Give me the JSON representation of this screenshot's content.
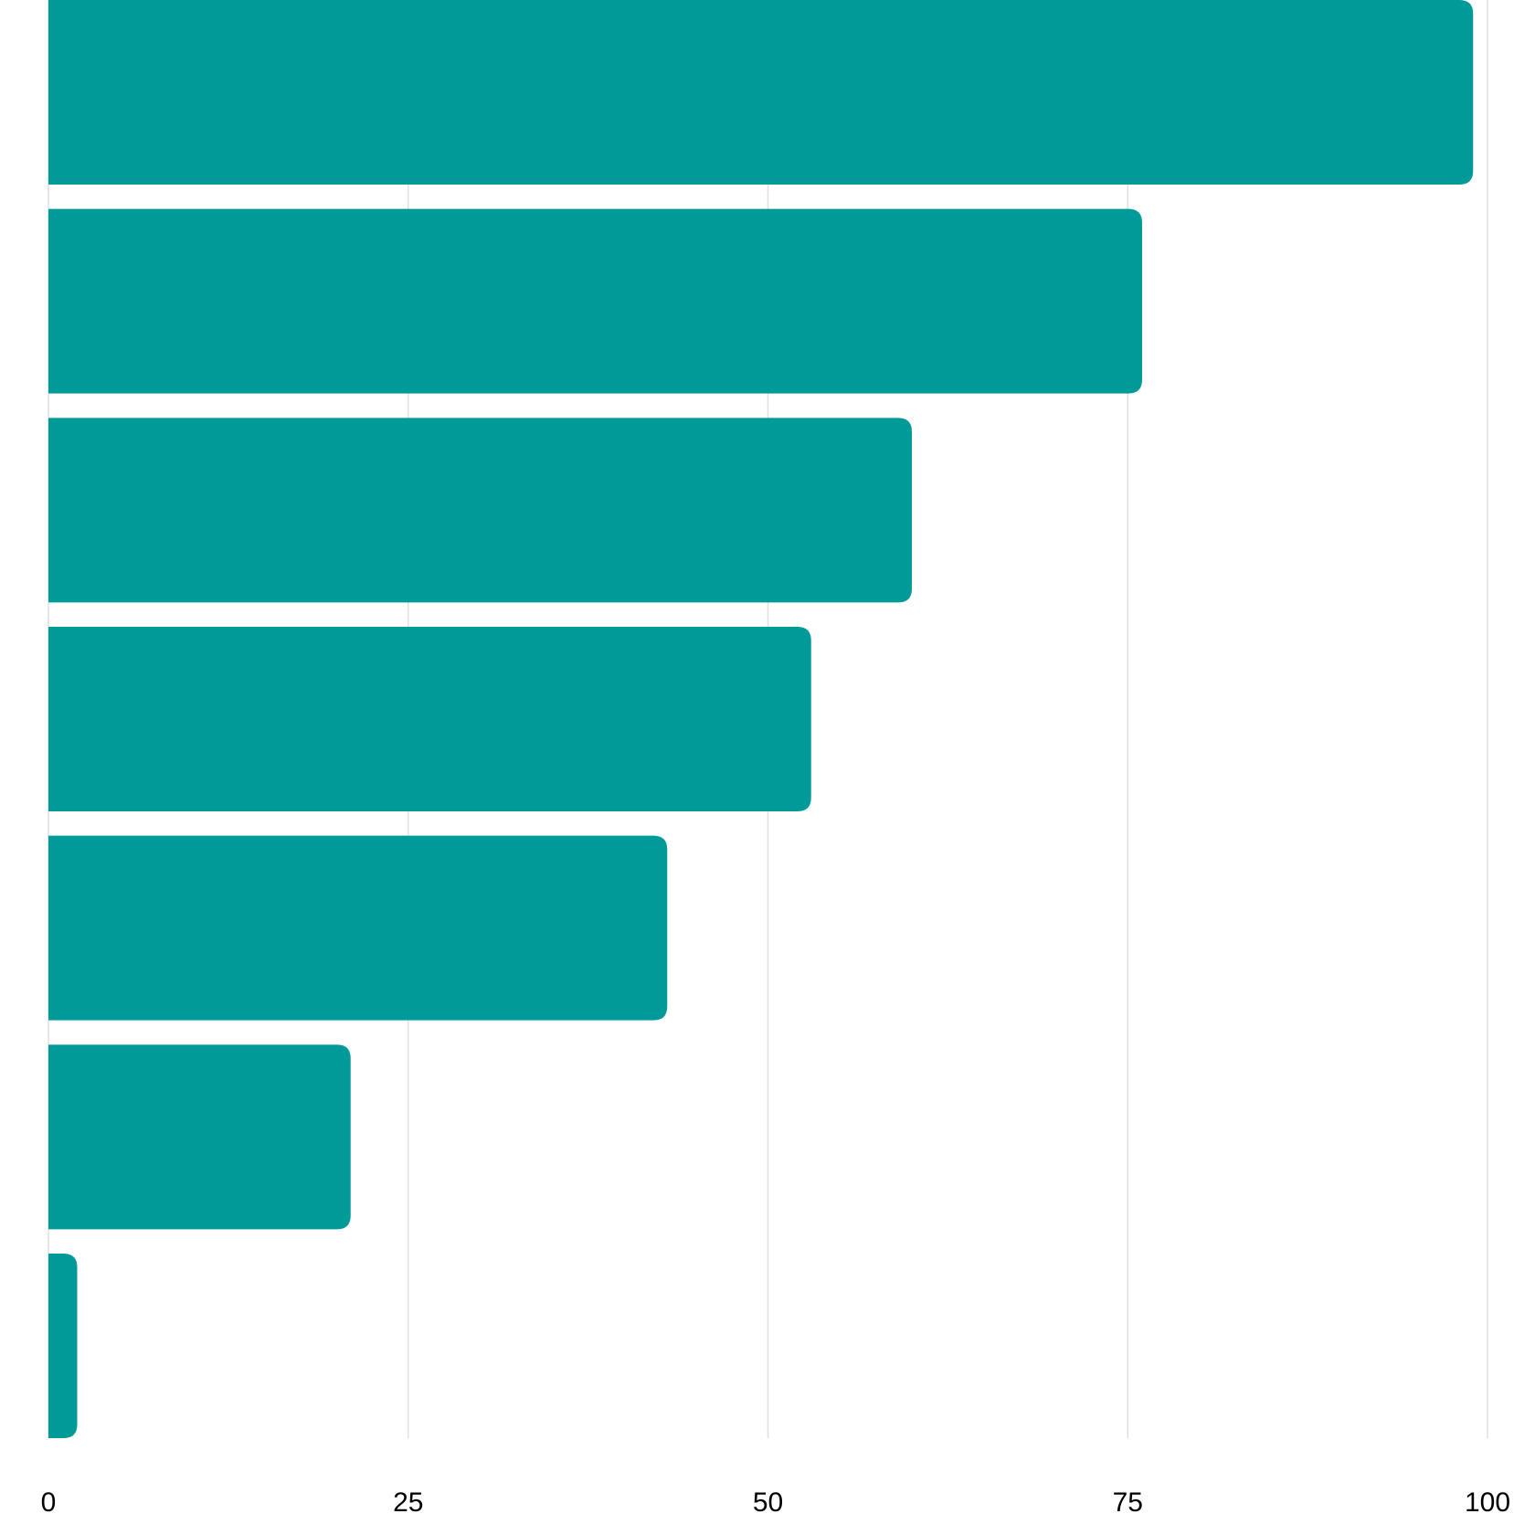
{
  "chart_data": {
    "type": "bar",
    "orientation": "horizontal",
    "categories": [
      null,
      null,
      null,
      null,
      null,
      null,
      null
    ],
    "values": [
      99,
      76,
      60,
      53,
      43,
      21,
      2
    ],
    "color": "#009a98",
    "xlim": [
      0,
      100
    ],
    "xticks": [
      0,
      25,
      50,
      75,
      100
    ],
    "grid": true
  }
}
